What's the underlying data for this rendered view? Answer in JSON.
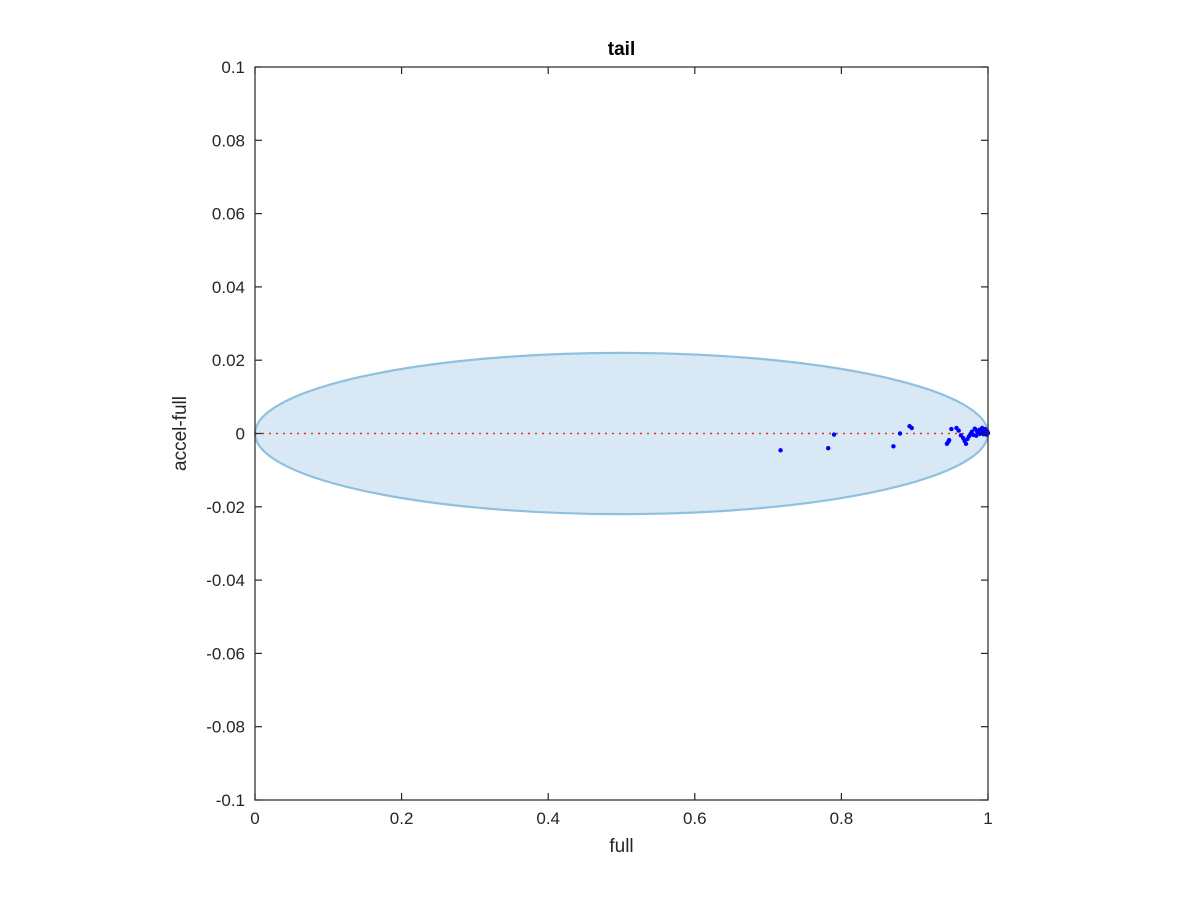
{
  "chart_data": {
    "type": "scatter",
    "title": "tail",
    "xlabel": "full",
    "ylabel": "accel-full",
    "xlim": [
      0,
      1
    ],
    "ylim": [
      -0.1,
      0.1
    ],
    "xticks": [
      0,
      0.2,
      0.4,
      0.6,
      0.8,
      1
    ],
    "xtick_labels": [
      "0",
      "0.2",
      "0.4",
      "0.6",
      "0.8",
      "1"
    ],
    "yticks": [
      0.1,
      0.08,
      0.06,
      0.04,
      0.02,
      0,
      -0.02,
      -0.04,
      -0.06,
      -0.08,
      -0.1
    ],
    "ytick_labels": [
      "0.1",
      "0.08",
      "0.06",
      "0.04",
      "0.02",
      "0",
      "-0.02",
      "-0.04",
      "-0.06",
      "-0.08",
      "-0.1"
    ],
    "grid": false,
    "reference_line": {
      "y": 0,
      "style": "dotted",
      "color": "#e8312f"
    },
    "ellipse": {
      "center_x": 0.5,
      "center_y": 0,
      "semi_x": 0.5,
      "semi_y": 0.022,
      "fill": "#d8e8f5",
      "stroke": "#8fc0e0"
    },
    "series": [
      {
        "color": "#0000ff",
        "points": [
          [
            0.717,
            -0.0046
          ],
          [
            0.782,
            -0.004
          ],
          [
            0.79,
            -0.0003
          ],
          [
            0.871,
            -0.0035
          ],
          [
            0.88,
            0.0
          ],
          [
            0.893,
            0.002
          ],
          [
            0.896,
            0.0015
          ],
          [
            0.944,
            -0.0028
          ],
          [
            0.946,
            -0.0022
          ],
          [
            0.947,
            -0.0018
          ],
          [
            0.95,
            0.0012
          ],
          [
            0.957,
            0.0015
          ],
          [
            0.96,
            0.0008
          ],
          [
            0.963,
            -0.0005
          ],
          [
            0.966,
            -0.0012
          ],
          [
            0.968,
            -0.002
          ],
          [
            0.97,
            -0.0028
          ],
          [
            0.972,
            -0.0015
          ],
          [
            0.974,
            -0.0008
          ],
          [
            0.976,
            -0.0002
          ],
          [
            0.978,
            0.0005
          ],
          [
            0.98,
            -0.0004
          ],
          [
            0.982,
            0.0013
          ],
          [
            0.984,
            -0.0006
          ],
          [
            0.986,
            0.0002
          ],
          [
            0.988,
            0.001
          ],
          [
            0.99,
            0.0004
          ],
          [
            0.992,
            0.0015
          ],
          [
            0.994,
            -0.0002
          ],
          [
            0.995,
            0.0007
          ],
          [
            0.996,
            0.0012
          ],
          [
            0.997,
            0.0003
          ],
          [
            0.998,
            -0.0003
          ],
          [
            0.999,
            0.0006
          ],
          [
            1.0,
            0.0001
          ],
          [
            0.993,
            0.0008
          ],
          [
            0.989,
            -0.0001
          ],
          [
            0.985,
            0.0006
          ]
        ]
      }
    ]
  }
}
